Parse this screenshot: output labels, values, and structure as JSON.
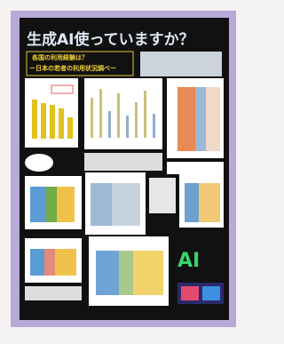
{
  "poster": {
    "title": "生成AI使っていますか？",
    "subtitle": [
      "各国の利用経験は？",
      "ー日本の若者の利用状況調べー"
    ]
  }
}
